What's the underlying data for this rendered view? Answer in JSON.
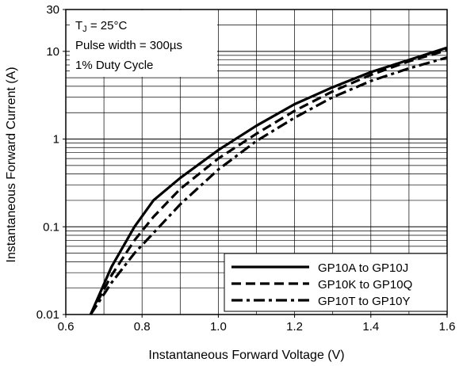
{
  "chart_data": {
    "type": "line",
    "xlabel": "Instantaneous Forward Voltage (V)",
    "ylabel": "Instantaneous Forward Current (A)",
    "xlim": [
      0.6,
      1.6
    ],
    "ylim": [
      0.01,
      30
    ],
    "yscale": "log",
    "grid": true,
    "x_ticks": [
      "0.6",
      "0.8",
      "1.0",
      "1.2",
      "1.4",
      "1.6"
    ],
    "y_ticks": [
      "0.01",
      "0.1",
      "1",
      "10",
      "30"
    ],
    "annotations": {
      "line1_main": "T",
      "line1_sub": "J",
      "line1_rest": " = 25°C",
      "line2": "Pulse width = 300µs",
      "line3": "1% Duty Cycle"
    },
    "legend_position": "bottom-right",
    "series": [
      {
        "name": "GP10A to GP10J",
        "style": "solid",
        "x": [
          0.665,
          0.72,
          0.78,
          0.83,
          0.9,
          1.0,
          1.1,
          1.2,
          1.3,
          1.4,
          1.5,
          1.6
        ],
        "y": [
          0.01,
          0.035,
          0.1,
          0.2,
          0.36,
          0.75,
          1.42,
          2.5,
          3.9,
          5.8,
          8.0,
          11.0
        ]
      },
      {
        "name": "GP10K to GP10Q",
        "style": "dashed",
        "x": [
          0.665,
          0.72,
          0.78,
          0.83,
          0.9,
          1.0,
          1.1,
          1.2,
          1.3,
          1.4,
          1.5,
          1.6
        ],
        "y": [
          0.01,
          0.028,
          0.07,
          0.13,
          0.27,
          0.6,
          1.15,
          2.1,
          3.5,
          5.4,
          7.7,
          10.3
        ]
      },
      {
        "name": "GP10T to GP10Y",
        "style": "dashdot",
        "x": [
          0.665,
          0.72,
          0.78,
          0.83,
          0.9,
          1.0,
          1.1,
          1.2,
          1.3,
          1.4,
          1.5,
          1.6
        ],
        "y": [
          0.01,
          0.023,
          0.05,
          0.085,
          0.18,
          0.45,
          0.95,
          1.75,
          3.0,
          4.6,
          6.4,
          8.5
        ]
      }
    ]
  }
}
